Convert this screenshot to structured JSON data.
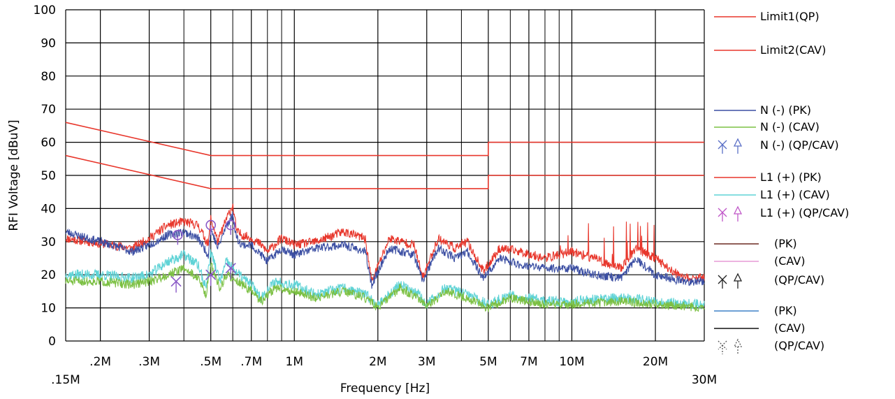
{
  "chart_data": {
    "type": "line",
    "xlabel": "Frequency [Hz]",
    "ylabel": "RFI Voltage [dBuV]",
    "x_scale": "log",
    "xlim": [
      150000,
      30000000
    ],
    "ylim": [
      0,
      100
    ],
    "grid": true,
    "legend_position": "right",
    "y_ticks": [
      0,
      10,
      20,
      30,
      40,
      50,
      60,
      70,
      80,
      90,
      100
    ],
    "x_ticks": [
      {
        "value": 150000,
        "label": ".15M",
        "row": 2
      },
      {
        "value": 200000,
        "label": ".2M",
        "row": 1
      },
      {
        "value": 300000,
        "label": ".3M",
        "row": 1
      },
      {
        "value": 500000,
        "label": ".5M",
        "row": 1
      },
      {
        "value": 700000,
        "label": ".7M",
        "row": 1
      },
      {
        "value": 1000000,
        "label": "1M",
        "row": 1
      },
      {
        "value": 2000000,
        "label": "2M",
        "row": 1
      },
      {
        "value": 3000000,
        "label": "3M",
        "row": 1
      },
      {
        "value": 5000000,
        "label": "5M",
        "row": 1
      },
      {
        "value": 7000000,
        "label": "7M",
        "row": 1
      },
      {
        "value": 10000000,
        "label": "10M",
        "row": 1
      },
      {
        "value": 20000000,
        "label": "20M",
        "row": 1
      },
      {
        "value": 30000000,
        "label": "30M",
        "row": 2
      }
    ],
    "minor_gridlines_x": [
      400000,
      600000,
      800000,
      900000,
      4000000,
      6000000,
      8000000,
      9000000
    ],
    "legend": [
      {
        "label": "Limit1(QP)",
        "kind": "line",
        "color": "#e8372c"
      },
      {
        "label": "Limit2(CAV)",
        "kind": "line",
        "color": "#e8372c"
      },
      {
        "label": "N (-) (PK)",
        "kind": "line",
        "color": "#3c4fa3"
      },
      {
        "label": "N (-) (CAV)",
        "kind": "line",
        "color": "#7cc043"
      },
      {
        "label": "N (-) (QP/CAV)",
        "kind": "marker",
        "color": "#5a6fc6"
      },
      {
        "label": "L1 (+) (PK)",
        "kind": "line",
        "color": "#e8372c"
      },
      {
        "label": "L1 (+) (CAV)",
        "kind": "line",
        "color": "#5fd3d6"
      },
      {
        "label": "L1 (+) (QP/CAV)",
        "kind": "marker",
        "color": "#c058c8"
      },
      {
        "label": "(PK)",
        "kind": "line",
        "color": "#6b2a22"
      },
      {
        "label": "(CAV)",
        "kind": "line",
        "color": "#e79ad6"
      },
      {
        "label": "(QP/CAV)",
        "kind": "marker",
        "color": "#222222"
      },
      {
        "label": "(PK)",
        "kind": "line",
        "color": "#3f82c7"
      },
      {
        "label": "(CAV)",
        "kind": "line",
        "color": "#111111"
      },
      {
        "label": "(QP/CAV)",
        "kind": "marker-dashed",
        "color": "#555555"
      }
    ],
    "series": [
      {
        "legend_index": 0,
        "color": "#e8372c",
        "x": [
          150000,
          500000,
          4999000,
          5000000,
          30000000
        ],
        "y": [
          66,
          56,
          56,
          60,
          60
        ]
      },
      {
        "legend_index": 1,
        "color": "#e8372c",
        "x": [
          150000,
          500000,
          4999000,
          5000000,
          30000000
        ],
        "y": [
          56,
          46,
          46,
          50,
          50
        ]
      },
      {
        "legend_index": 5,
        "color": "#e8372c",
        "noise": 1.4,
        "seed": 11,
        "x": [
          150000,
          180000,
          220000,
          260000,
          300000,
          350000,
          400000,
          450000,
          490000,
          500000,
          530000,
          570000,
          600000,
          620000,
          650000,
          700000,
          760000,
          800000,
          900000,
          1000000,
          1200000,
          1500000,
          1800000,
          1900000,
          2200000,
          2700000,
          2900000,
          3300000,
          3800000,
          4200000,
          4800000,
          5500000,
          6500000,
          8000000,
          10000000,
          12000000,
          15000000,
          17000000,
          20000000,
          25000000,
          30000000
        ],
        "y": [
          31,
          30,
          29,
          28,
          31,
          35,
          36,
          35,
          29,
          37,
          30,
          37,
          41,
          33,
          32,
          31,
          29,
          27,
          31,
          29,
          30,
          33,
          31,
          18,
          31,
          29,
          19,
          31,
          28,
          30,
          21,
          28,
          27,
          25,
          27,
          25,
          22,
          28,
          25,
          19,
          19
        ]
      },
      {
        "legend_index": 2,
        "color": "#3c4fa3",
        "noise": 1.3,
        "seed": 23,
        "x": [
          150000,
          180000,
          220000,
          260000,
          300000,
          350000,
          400000,
          450000,
          490000,
          500000,
          530000,
          570000,
          600000,
          620000,
          650000,
          700000,
          760000,
          800000,
          900000,
          1000000,
          1200000,
          1500000,
          1800000,
          1900000,
          2200000,
          2700000,
          2900000,
          3300000,
          3800000,
          4200000,
          4800000,
          5500000,
          6500000,
          8000000,
          10000000,
          12000000,
          15000000,
          17000000,
          20000000,
          25000000,
          30000000
        ],
        "y": [
          33,
          31,
          29,
          27,
          29,
          32,
          33,
          31,
          26,
          34,
          28,
          35,
          38,
          31,
          29,
          29,
          26,
          24,
          28,
          26,
          28,
          29,
          27,
          17,
          28,
          26,
          18,
          28,
          25,
          27,
          19,
          25,
          23,
          22,
          22,
          20,
          19,
          25,
          20,
          18,
          18
        ]
      },
      {
        "legend_index": 6,
        "color": "#5fd3d6",
        "noise": 1.6,
        "seed": 37,
        "x": [
          150000,
          200000,
          260000,
          300000,
          350000,
          400000,
          450000,
          480000,
          500000,
          540000,
          570000,
          600000,
          650000,
          700000,
          760000,
          850000,
          1000000,
          1200000,
          1500000,
          1800000,
          2000000,
          2400000,
          2800000,
          3000000,
          3500000,
          4200000,
          5000000,
          6000000,
          8000000,
          10000000,
          15000000,
          20000000,
          30000000
        ],
        "y": [
          20,
          20,
          19,
          20,
          24,
          26,
          23,
          16,
          27,
          18,
          24,
          22,
          19,
          17,
          13,
          18,
          17,
          14,
          16,
          14,
          11,
          17,
          14,
          11,
          16,
          14,
          11,
          14,
          12,
          12,
          13,
          12,
          11
        ]
      },
      {
        "legend_index": 3,
        "color": "#7cc043",
        "noise": 1.4,
        "seed": 51,
        "x": [
          150000,
          200000,
          260000,
          300000,
          350000,
          400000,
          450000,
          480000,
          500000,
          540000,
          570000,
          600000,
          650000,
          700000,
          760000,
          850000,
          1000000,
          1200000,
          1500000,
          1800000,
          2000000,
          2400000,
          2800000,
          3000000,
          3500000,
          4200000,
          5000000,
          6000000,
          8000000,
          10000000,
          15000000,
          20000000,
          30000000
        ],
        "y": [
          18,
          18,
          17,
          18,
          20,
          22,
          19,
          14,
          23,
          16,
          20,
          19,
          17,
          15,
          12,
          16,
          15,
          13,
          15,
          13,
          10,
          16,
          13,
          10,
          15,
          13,
          10,
          13,
          11,
          11,
          12,
          11,
          10
        ]
      }
    ],
    "qp_markers": [
      {
        "x": 380000,
        "y": 32,
        "color": "#8a59c7"
      },
      {
        "x": 500000,
        "y": 35,
        "color": "#8a59c7"
      },
      {
        "x": 590000,
        "y": 35,
        "color": "#8a59c7"
      }
    ],
    "cav_markers": [
      {
        "x": 375000,
        "y": 18,
        "color": "#8a59c7"
      },
      {
        "x": 500000,
        "y": 20,
        "color": "#8a59c7"
      },
      {
        "x": 590000,
        "y": 22,
        "color": "#8a59c7"
      }
    ]
  }
}
